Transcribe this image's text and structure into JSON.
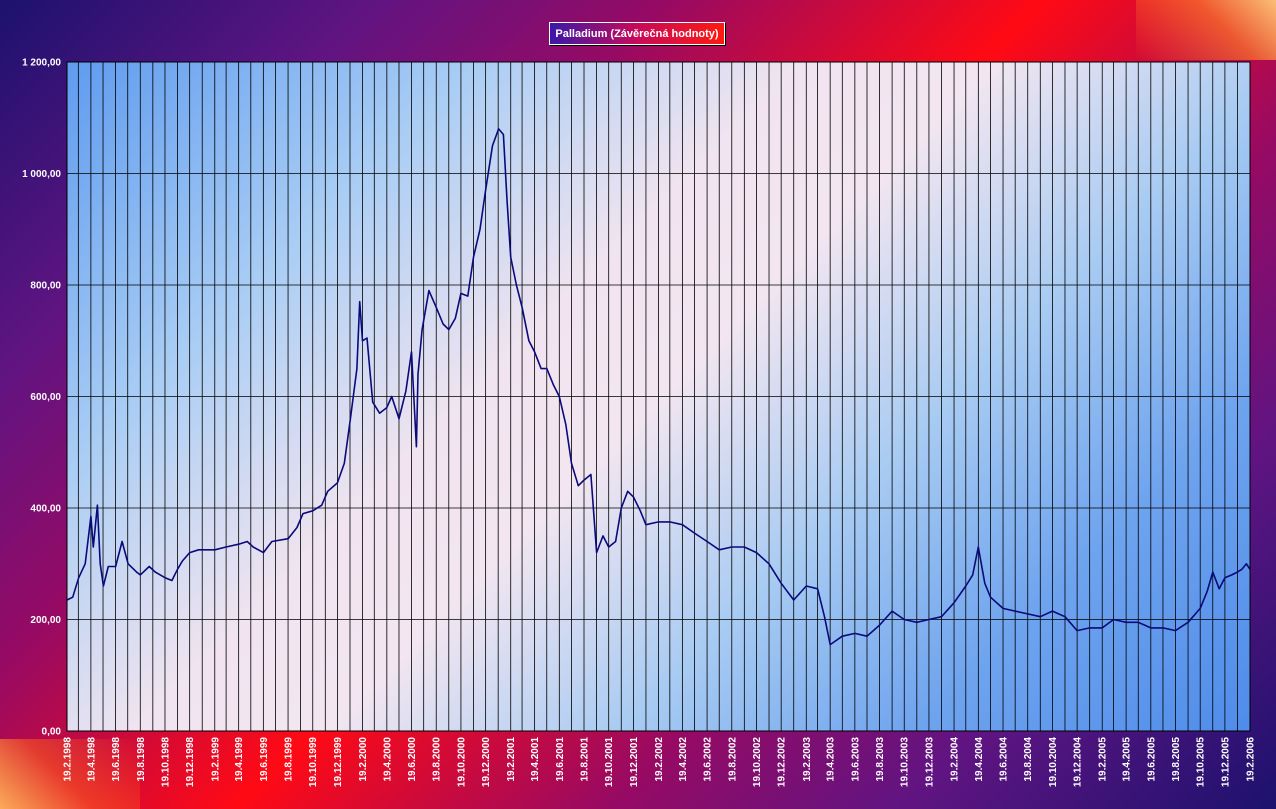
{
  "chart_data": {
    "type": "line",
    "title": "Palladium (Závěrečná hodnoty)",
    "xlabel": "",
    "ylabel": "",
    "ylim": [
      0,
      1200
    ],
    "grid": true,
    "yticks": [
      "0,00",
      "200,00",
      "400,00",
      "600,00",
      "800,00",
      "1 000,00",
      "1 200,00"
    ],
    "xticks": [
      "19.2.1998",
      "19.4.1998",
      "19.6.1998",
      "19.8.1998",
      "19.10.1998",
      "19.12.1998",
      "19.2.1999",
      "19.4.1999",
      "19.6.1999",
      "19.8.1999",
      "19.10.1999",
      "19.12.1999",
      "19.2.2000",
      "19.4.2000",
      "19.6.2000",
      "19.8.2000",
      "19.10.2000",
      "19.12.2000",
      "19.2.2001",
      "19.4.2001",
      "19.6.2001",
      "19.8.2001",
      "19.10.2001",
      "19.12.2001",
      "19.2.2002",
      "19.4.2002",
      "19.6.2002",
      "19.8.2002",
      "19.10.2002",
      "19.12.2002",
      "19.2.2003",
      "19.4.2003",
      "19.6.2003",
      "19.8.2003",
      "19.10.2003",
      "19.12.2003",
      "19.2.2004",
      "19.4.2004",
      "19.6.2004",
      "19.8.2004",
      "19.10.2004",
      "19.12.2004",
      "19.2.2005",
      "19.4.2005",
      "19.6.2005",
      "19.8.2005",
      "19.10.2005",
      "19.12.2005",
      "19.2.2006"
    ],
    "series": [
      {
        "color": "#0a0a7a",
        "x": [
          "1998-02-19",
          "1998-03-05",
          "1998-03-20",
          "1998-04-05",
          "1998-04-19",
          "1998-04-25",
          "1998-05-05",
          "1998-05-12",
          "1998-05-20",
          "1998-06-01",
          "1998-06-19",
          "1998-07-05",
          "1998-07-20",
          "1998-08-10",
          "1998-08-19",
          "1998-09-10",
          "1998-09-25",
          "1998-10-19",
          "1998-11-05",
          "1998-11-19",
          "1998-12-01",
          "1998-12-19",
          "1999-01-10",
          "1999-02-19",
          "1999-03-19",
          "1999-04-19",
          "1999-05-10",
          "1999-05-25",
          "1999-06-19",
          "1999-07-10",
          "1999-08-19",
          "1999-09-10",
          "1999-09-25",
          "1999-10-19",
          "1999-11-10",
          "1999-11-25",
          "1999-12-19",
          "2000-01-05",
          "2000-01-20",
          "2000-02-05",
          "2000-02-12",
          "2000-02-19",
          "2000-03-01",
          "2000-03-15",
          "2000-04-01",
          "2000-04-19",
          "2000-05-01",
          "2000-05-19",
          "2000-06-05",
          "2000-06-19",
          "2000-07-01",
          "2000-07-05",
          "2000-07-15",
          "2000-08-01",
          "2000-08-19",
          "2000-09-05",
          "2000-09-19",
          "2000-10-05",
          "2000-10-19",
          "2000-11-05",
          "2000-11-19",
          "2000-12-05",
          "2000-12-19",
          "2001-01-05",
          "2001-01-20",
          "2001-02-01",
          "2001-02-10",
          "2001-02-19",
          "2001-03-05",
          "2001-03-19",
          "2001-04-05",
          "2001-04-19",
          "2001-05-05",
          "2001-05-19",
          "2001-06-05",
          "2001-06-19",
          "2001-07-05",
          "2001-07-19",
          "2001-08-05",
          "2001-08-19",
          "2001-09-05",
          "2001-09-19",
          "2001-10-05",
          "2001-10-19",
          "2001-11-05",
          "2001-11-19",
          "2001-12-05",
          "2001-12-19",
          "2002-01-05",
          "2002-01-19",
          "2002-02-19",
          "2002-03-19",
          "2002-04-19",
          "2002-05-19",
          "2002-06-19",
          "2002-07-19",
          "2002-08-19",
          "2002-09-19",
          "2002-10-19",
          "2002-11-19",
          "2002-12-19",
          "2003-01-19",
          "2003-02-19",
          "2003-03-19",
          "2003-04-05",
          "2003-04-19",
          "2003-05-19",
          "2003-06-19",
          "2003-07-19",
          "2003-08-19",
          "2003-09-19",
          "2003-10-19",
          "2003-11-19",
          "2003-12-19",
          "2004-01-19",
          "2004-02-19",
          "2004-03-19",
          "2004-04-05",
          "2004-04-19",
          "2004-05-05",
          "2004-05-19",
          "2004-06-19",
          "2004-07-19",
          "2004-08-19",
          "2004-09-19",
          "2004-10-19",
          "2004-11-19",
          "2004-12-19",
          "2005-01-19",
          "2005-02-19",
          "2005-03-19",
          "2005-04-19",
          "2005-05-19",
          "2005-06-19",
          "2005-07-19",
          "2005-08-19",
          "2005-09-19",
          "2005-10-19",
          "2005-11-05",
          "2005-11-19",
          "2005-12-05",
          "2005-12-19",
          "2006-01-05",
          "2006-01-19",
          "2006-01-30",
          "2006-02-10",
          "2006-02-19"
        ],
        "values": [
          235,
          240,
          275,
          300,
          385,
          330,
          405,
          300,
          260,
          295,
          295,
          340,
          300,
          285,
          280,
          295,
          285,
          275,
          270,
          290,
          305,
          320,
          325,
          325,
          330,
          335,
          340,
          330,
          320,
          340,
          345,
          365,
          390,
          395,
          405,
          430,
          445,
          480,
          560,
          650,
          770,
          700,
          705,
          590,
          570,
          580,
          600,
          560,
          610,
          680,
          510,
          640,
          720,
          790,
          760,
          730,
          720,
          740,
          785,
          780,
          850,
          900,
          970,
          1050,
          1080,
          1070,
          950,
          850,
          800,
          760,
          700,
          680,
          650,
          650,
          620,
          600,
          550,
          480,
          440,
          450,
          460,
          320,
          350,
          330,
          340,
          400,
          430,
          420,
          395,
          370,
          375,
          375,
          370,
          355,
          340,
          325,
          330,
          330,
          320,
          300,
          265,
          235,
          260,
          255,
          205,
          155,
          170,
          175,
          170,
          190,
          215,
          200,
          195,
          200,
          205,
          230,
          260,
          280,
          330,
          265,
          240,
          220,
          215,
          210,
          205,
          215,
          205,
          180,
          185,
          185,
          200,
          195,
          195,
          185,
          185,
          180,
          195,
          220,
          250,
          285,
          255,
          275,
          280,
          285,
          290,
          300,
          290
        ]
      }
    ]
  }
}
